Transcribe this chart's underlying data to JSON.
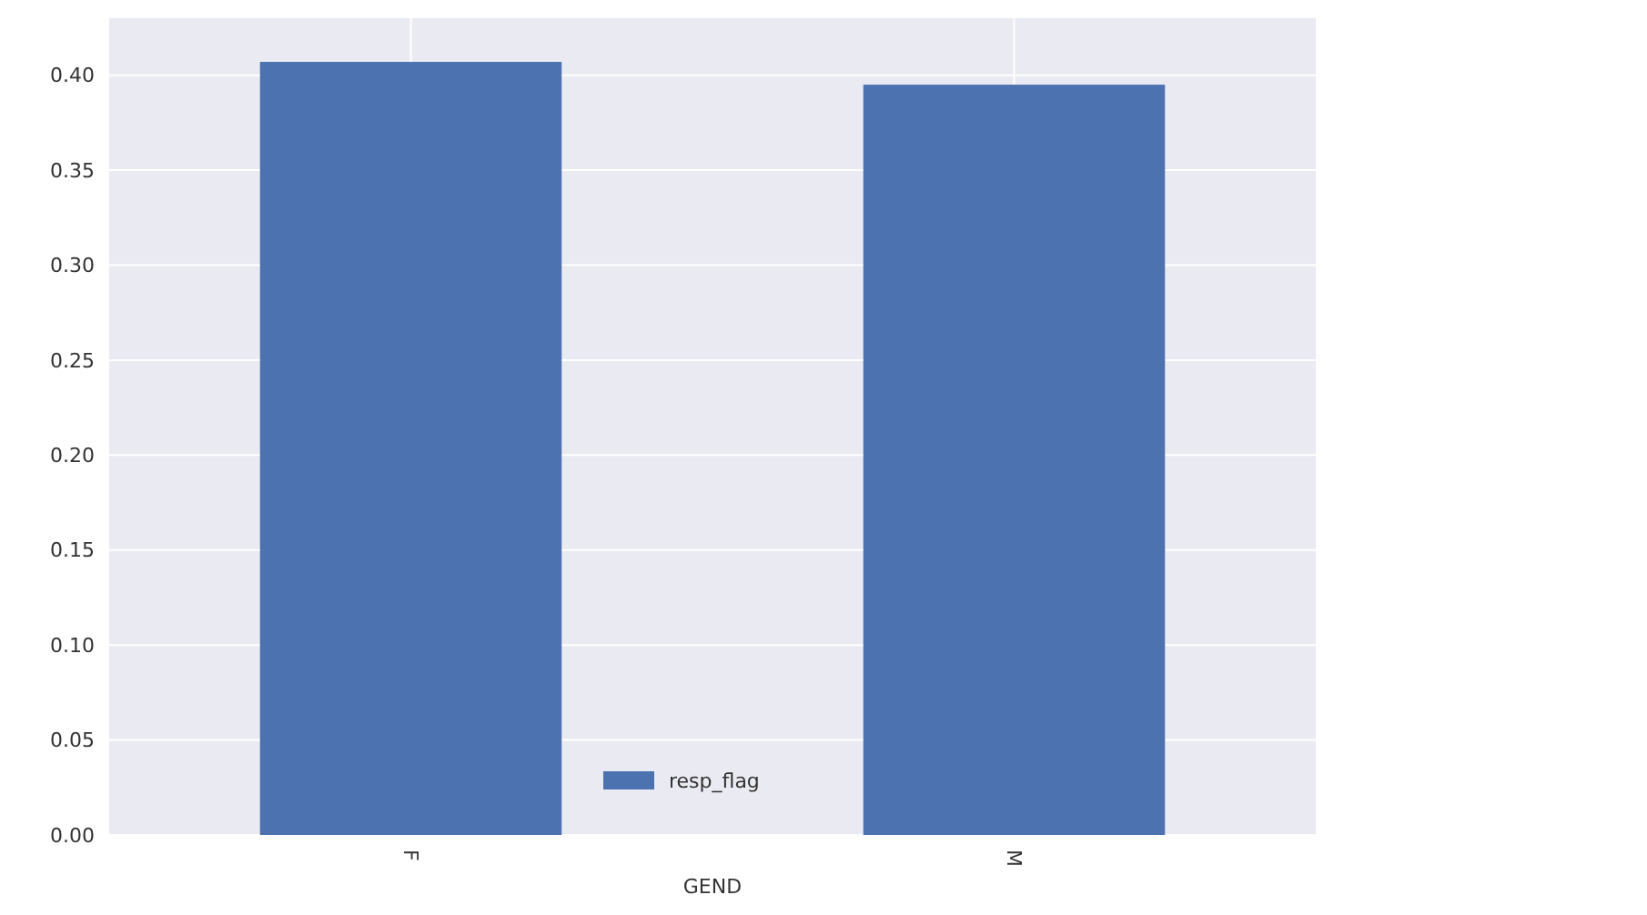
{
  "chart_data": {
    "type": "bar",
    "xlabel": "GEND",
    "categories": [
      "F",
      "M"
    ],
    "series": [
      {
        "name": "resp_flag",
        "color": "#4c72b0",
        "values": [
          0.407,
          0.395
        ]
      }
    ],
    "ylim": [
      0,
      0.43
    ],
    "yticks": [
      {
        "value": 0,
        "label": "0.00"
      },
      {
        "value": 0.05,
        "label": "0.05"
      },
      {
        "value": 0.1,
        "label": "0.10"
      },
      {
        "value": 0.15,
        "label": "0.15"
      },
      {
        "value": 0.2,
        "label": "0.20"
      },
      {
        "value": 0.25,
        "label": "0.25"
      },
      {
        "value": 0.3,
        "label": "0.30"
      },
      {
        "value": 0.35,
        "label": "0.35"
      },
      {
        "value": 0.4,
        "label": "0.40"
      }
    ],
    "grid": true,
    "legend": "bottom"
  }
}
